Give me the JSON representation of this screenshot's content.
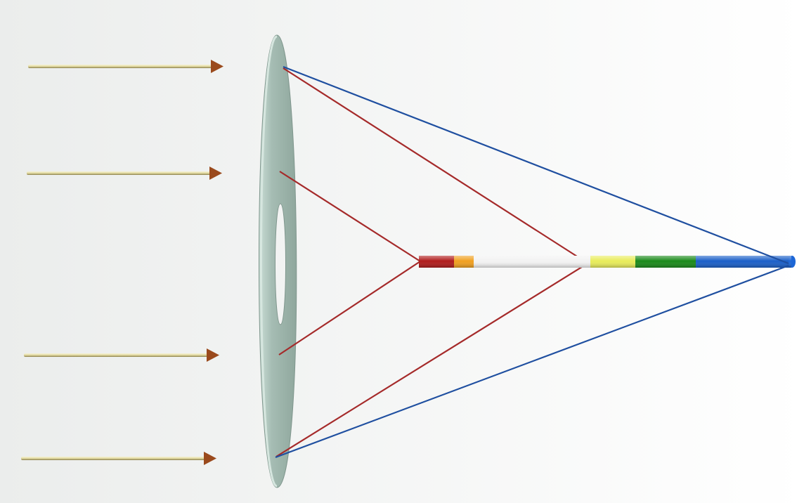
{
  "colors": {
    "background_left": "#ebedec",
    "background_right": "#ffffff",
    "incoming_ray": "#e8e2b0",
    "incoming_ray_edge": "#8a7f4c",
    "arrow_head": "#9a4a1c",
    "lens_face": "#9db3aa",
    "lens_edge": "#c9ddd5",
    "red_ray": "#a52a2a",
    "blue_ray": "#1f4fa0"
  },
  "incoming_ray_count": 4,
  "focal_axis_segments": [
    {
      "color": "#b01c1c"
    },
    {
      "color": "#f0a020"
    },
    {
      "color": "#f2f2f2"
    },
    {
      "color": "#e8ec5a"
    },
    {
      "color": "#1a8a1a"
    },
    {
      "color": "#1a5fc8"
    }
  ]
}
